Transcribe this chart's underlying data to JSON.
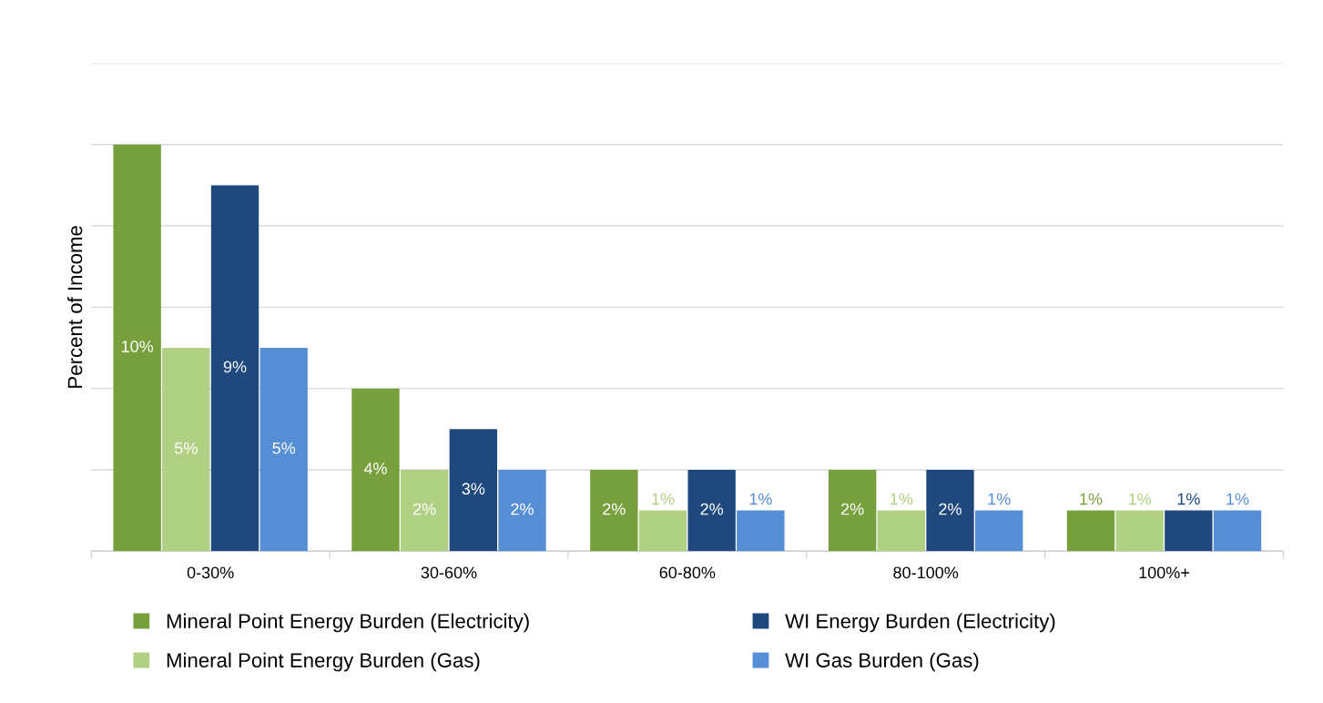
{
  "chart_data": {
    "type": "bar",
    "ylabel": "Percent of Income",
    "categories": [
      "0-30%",
      "30-60%",
      "60-80%",
      "80-100%",
      "100%+"
    ],
    "series": [
      {
        "name": "Mineral Point Energy Burden (Electricity)",
        "color": "#77a03c",
        "values": [
          10,
          4,
          2,
          2,
          1
        ],
        "value_labels": [
          "10%",
          "4%",
          "2%",
          "2%",
          "1%"
        ]
      },
      {
        "name": "Mineral Point Energy Burden (Gas)",
        "color": "#b0d083",
        "values": [
          5,
          2,
          1,
          1,
          1
        ],
        "value_labels": [
          "5%",
          "2%",
          "1%",
          "1%",
          "1%"
        ]
      },
      {
        "name": "WI Energy Burden (Electricity)",
        "color": "#1f497d",
        "values": [
          9,
          3,
          2,
          2,
          1
        ],
        "value_labels": [
          "9%",
          "3%",
          "2%",
          "2%",
          "1%"
        ]
      },
      {
        "name": "WI Gas Burden (Gas)",
        "color": "#558ed5",
        "values": [
          5,
          2,
          1,
          1,
          1
        ],
        "value_labels": [
          "5%",
          "2%",
          "1%",
          "1%",
          "1%"
        ]
      }
    ],
    "ylim": [
      0,
      12
    ],
    "yticks": [
      {
        "value": 0,
        "label": null
      },
      {
        "value": 2,
        "label": null
      },
      {
        "value": 4,
        "label": null
      },
      {
        "value": 6,
        "label": null
      },
      {
        "value": 8,
        "label": null
      },
      {
        "value": 10,
        "label": null
      },
      {
        "value": 12,
        "label": null
      }
    ],
    "tick_labels": "x",
    "grid": "y",
    "legend": "bottom"
  }
}
